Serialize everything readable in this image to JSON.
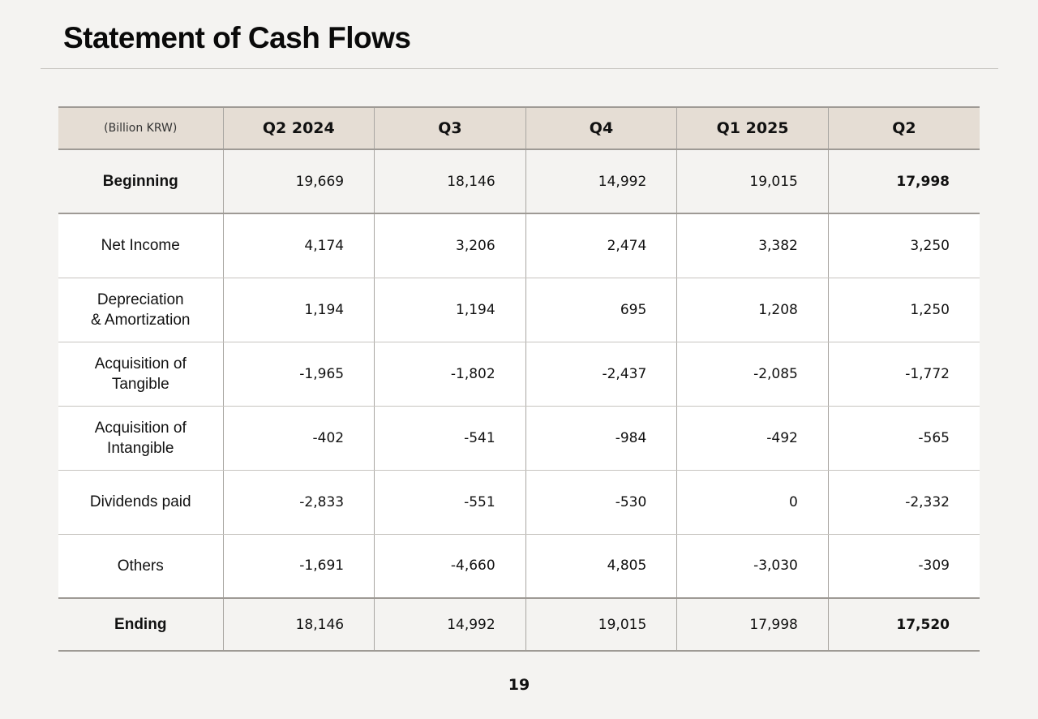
{
  "title": "Statement of Cash Flows",
  "table": {
    "unit": "(Billion KRW)",
    "columns": [
      "Q2 2024",
      "Q3",
      "Q4",
      "Q1 2025",
      "Q2"
    ],
    "rows": [
      {
        "label": "Beginning",
        "values": [
          "19,669",
          "18,146",
          "14,992",
          "19,015",
          "17,998"
        ]
      },
      {
        "label": "Net Income",
        "values": [
          "4,174",
          "3,206",
          "2,474",
          "3,382",
          "3,250"
        ]
      },
      {
        "label": "Depreciation\n& Amortization",
        "values": [
          "1,194",
          "1,194",
          "695",
          "1,208",
          "1,250"
        ]
      },
      {
        "label": "Acquisition of\nTangible",
        "values": [
          "-1,965",
          "-1,802",
          "-2,437",
          "-2,085",
          "-1,772"
        ]
      },
      {
        "label": "Acquisition of\nIntangible",
        "values": [
          "-402",
          "-541",
          "-984",
          "-492",
          "-565"
        ]
      },
      {
        "label": "Dividends paid",
        "values": [
          "-2,833",
          "-551",
          "-530",
          "0",
          "-2,332"
        ]
      },
      {
        "label": "Others",
        "values": [
          "-1,691",
          "-4,660",
          "4,805",
          "-3,030",
          "-309"
        ]
      },
      {
        "label": "Ending",
        "values": [
          "18,146",
          "14,992",
          "19,015",
          "17,998",
          "17,520"
        ]
      }
    ]
  },
  "page_number": "19"
}
